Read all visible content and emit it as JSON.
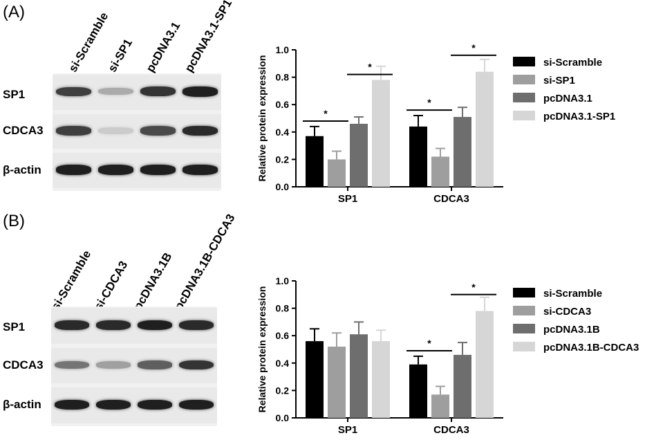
{
  "panels": [
    {
      "label": "(A)",
      "blot": {
        "lanes": [
          "si-Scramble",
          "si-SP1",
          "pcDNA3.1",
          "pcDNA3.1-SP1"
        ],
        "rows": [
          {
            "name": "SP1",
            "intensity": [
              0.8,
              0.3,
              0.85,
              0.95
            ]
          },
          {
            "name": "CDCA3",
            "intensity": [
              0.8,
              0.15,
              0.75,
              0.9
            ]
          },
          {
            "name": "β-actin",
            "intensity": [
              0.95,
              0.95,
              0.95,
              0.95
            ]
          }
        ]
      },
      "chart_data": {
        "type": "bar",
        "title": "",
        "ylabel": "Relative protein expression",
        "xlabel": "",
        "ylim": [
          0,
          1.0
        ],
        "yticks": [
          "0.0",
          "0.2",
          "0.4",
          "0.6",
          "0.8",
          "1.0"
        ],
        "categories": [
          "SP1",
          "CDCA3"
        ],
        "series": [
          {
            "name": "si-Scramble",
            "color": "#000000",
            "values": [
              0.37,
              0.44
            ],
            "errors": [
              0.07,
              0.08
            ]
          },
          {
            "name": "si-SP1",
            "color": "#9e9e9e",
            "values": [
              0.2,
              0.22
            ],
            "errors": [
              0.06,
              0.06
            ]
          },
          {
            "name": "pcDNA3.1",
            "color": "#6e6e6e",
            "values": [
              0.46,
              0.51
            ],
            "errors": [
              0.05,
              0.07
            ]
          },
          {
            "name": "pcDNA3.1-SP1",
            "color": "#d6d6d6",
            "values": [
              0.78,
              0.84
            ],
            "errors": [
              0.1,
              0.09
            ]
          }
        ],
        "significance": [
          {
            "category": 0,
            "from": 0,
            "to": 1,
            "y": 0.48,
            "label": "*"
          },
          {
            "category": 0,
            "from": 2,
            "to": 3,
            "y": 0.82,
            "label": "*"
          },
          {
            "category": 1,
            "from": 0,
            "to": 1,
            "y": 0.56,
            "label": "*"
          },
          {
            "category": 1,
            "from": 2,
            "to": 3,
            "y": 0.96,
            "label": "*"
          }
        ],
        "legend_position": "right"
      }
    },
    {
      "label": "(B)",
      "blot": {
        "lanes": [
          "si-Scramble",
          "si-CDCA3",
          "pcDNA3.1B",
          "pcDNA3.1B-CDCA3"
        ],
        "rows": [
          {
            "name": "SP1",
            "intensity": [
              0.9,
              0.9,
              0.95,
              0.9
            ]
          },
          {
            "name": "CDCA3",
            "intensity": [
              0.55,
              0.35,
              0.65,
              0.85
            ]
          },
          {
            "name": "β-actin",
            "intensity": [
              0.95,
              0.95,
              0.95,
              0.95
            ]
          }
        ]
      },
      "chart_data": {
        "type": "bar",
        "title": "",
        "ylabel": "Relative protein expression",
        "xlabel": "",
        "ylim": [
          0,
          1.0
        ],
        "yticks": [
          "0.0",
          "0.2",
          "0.4",
          "0.6",
          "0.8",
          "1.0"
        ],
        "categories": [
          "SP1",
          "CDCA3"
        ],
        "series": [
          {
            "name": "si-Scramble",
            "color": "#000000",
            "values": [
              0.56,
              0.39
            ],
            "errors": [
              0.09,
              0.06
            ]
          },
          {
            "name": "si-CDCA3",
            "color": "#9e9e9e",
            "values": [
              0.52,
              0.17
            ],
            "errors": [
              0.1,
              0.06
            ]
          },
          {
            "name": "pcDNA3.1B",
            "color": "#6e6e6e",
            "values": [
              0.61,
              0.46
            ],
            "errors": [
              0.09,
              0.09
            ]
          },
          {
            "name": "pcDNA3.1B-CDCA3",
            "color": "#d6d6d6",
            "values": [
              0.56,
              0.78
            ],
            "errors": [
              0.08,
              0.1
            ]
          }
        ],
        "significance": [
          {
            "category": 1,
            "from": 0,
            "to": 1,
            "y": 0.49,
            "label": "*"
          },
          {
            "category": 1,
            "from": 2,
            "to": 3,
            "y": 0.9,
            "label": "*"
          }
        ],
        "legend_position": "right"
      }
    }
  ]
}
